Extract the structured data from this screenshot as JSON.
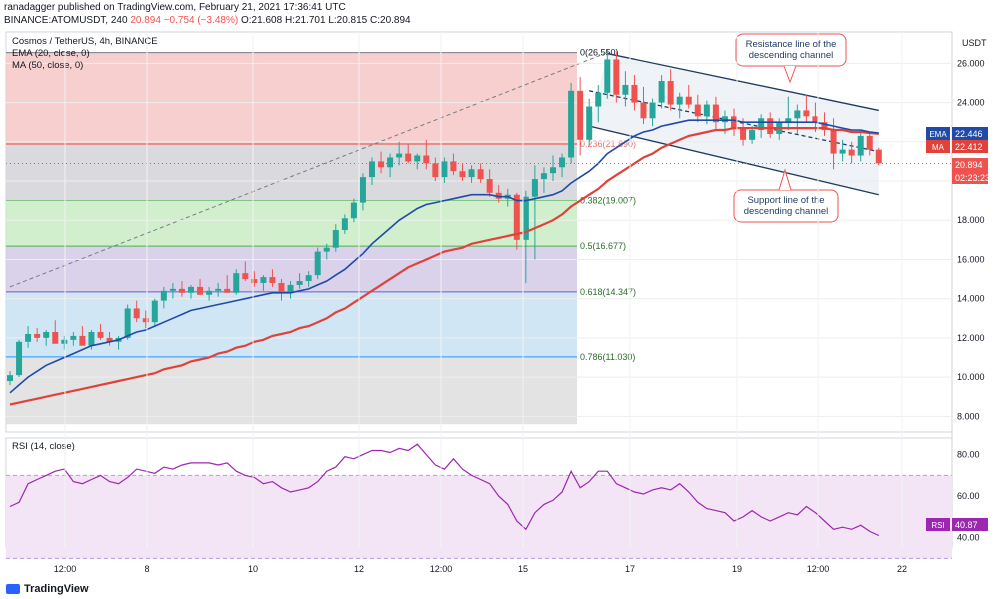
{
  "header": {
    "published": "ranadagger published on TradingView.com, February 21, 2021 17:36:41 UTC",
    "symbol": "BINANCE:ATOMUSDT, 240",
    "close_change": "20.894  −0.754 (−3.48%)",
    "o": "O:21.608",
    "h": "H:21.701",
    "l": "L:20.815",
    "c": "C:20.894"
  },
  "legend": {
    "title": "Cosmos / TetherUS, 4h, BINANCE",
    "ema": "EMA (20, close, 0)",
    "ma": "MA (50, close, 0)"
  },
  "currency": "USDT",
  "annotations": {
    "resistance": [
      "Resistance line of the",
      "descending channel"
    ],
    "support": [
      "Support line of the",
      "descending channel"
    ]
  },
  "badges": {
    "ema_label": "EMA",
    "ema_value": "22.446",
    "ma_label": "MA",
    "ma_value": "22.412",
    "price": "20.894",
    "countdown": "02:23:23",
    "rsi_label": "RSI",
    "rsi_value": "40.87"
  },
  "rsi_legend": "RSI (14, close)",
  "footer_brand": "TradingView",
  "colors": {
    "up": "#26a69a",
    "down": "#ef5350",
    "ema": "#1f4aa8",
    "ma": "#e0423a",
    "rsi": "#9c27b0",
    "channel": "#1e3a5f"
  },
  "chart_data": {
    "type": "candlestick",
    "title": "Cosmos / TetherUS, 4h, BINANCE",
    "ylim": [
      7.2,
      27.6
    ],
    "y_ticks": [
      "26.000",
      "24.000",
      "22.000",
      "20.000",
      "18.000",
      "16.000",
      "14.000",
      "12.000",
      "10.000",
      "8.000"
    ],
    "x_ticks": [
      "12:00",
      "8",
      "10",
      "12",
      "12:00",
      "15",
      "17",
      "19",
      "12:00",
      "22"
    ],
    "candles_ohlc": [
      [
        9.8,
        10.3,
        9.6,
        10.1
      ],
      [
        10.1,
        11.9,
        10.0,
        11.8
      ],
      [
        11.8,
        12.6,
        11.5,
        12.2
      ],
      [
        12.2,
        12.5,
        11.8,
        12.0
      ],
      [
        12.0,
        12.4,
        11.6,
        12.3
      ],
      [
        12.3,
        12.9,
        11.9,
        11.7
      ],
      [
        11.7,
        12.1,
        11.4,
        11.9
      ],
      [
        11.9,
        12.3,
        11.6,
        12.1
      ],
      [
        12.1,
        12.6,
        11.8,
        11.6
      ],
      [
        11.6,
        12.4,
        11.4,
        12.3
      ],
      [
        12.3,
        12.7,
        11.9,
        12.0
      ],
      [
        12.0,
        12.3,
        11.6,
        11.8
      ],
      [
        11.8,
        12.1,
        11.4,
        12.0
      ],
      [
        12.0,
        13.7,
        11.9,
        13.5
      ],
      [
        13.5,
        13.9,
        12.8,
        13.0
      ],
      [
        13.0,
        13.4,
        12.5,
        12.8
      ],
      [
        12.8,
        14.0,
        12.6,
        13.9
      ],
      [
        13.9,
        14.6,
        13.5,
        14.4
      ],
      [
        14.4,
        14.8,
        14.0,
        14.5
      ],
      [
        14.5,
        14.9,
        14.1,
        14.3
      ],
      [
        14.3,
        14.7,
        14.0,
        14.6
      ],
      [
        14.6,
        15.0,
        14.2,
        14.2
      ],
      [
        14.2,
        14.6,
        13.9,
        14.4
      ],
      [
        14.4,
        14.8,
        14.1,
        14.5
      ],
      [
        14.5,
        15.2,
        14.3,
        14.3
      ],
      [
        14.3,
        15.5,
        14.2,
        15.3
      ],
      [
        15.3,
        15.9,
        14.9,
        15.0
      ],
      [
        15.0,
        15.4,
        14.6,
        14.8
      ],
      [
        14.8,
        15.2,
        14.4,
        15.1
      ],
      [
        15.1,
        15.5,
        14.6,
        14.8
      ],
      [
        14.8,
        15.0,
        13.9,
        14.3
      ],
      [
        14.3,
        14.9,
        14.0,
        14.7
      ],
      [
        14.7,
        15.3,
        14.5,
        14.9
      ],
      [
        14.9,
        15.4,
        14.6,
        15.2
      ],
      [
        15.2,
        16.6,
        15.0,
        16.4
      ],
      [
        16.4,
        16.8,
        16.0,
        16.6
      ],
      [
        16.6,
        17.8,
        16.4,
        17.5
      ],
      [
        17.5,
        18.3,
        17.3,
        18.1
      ],
      [
        18.1,
        19.1,
        17.9,
        18.9
      ],
      [
        18.9,
        20.4,
        18.5,
        20.2
      ],
      [
        20.2,
        21.2,
        19.8,
        21.0
      ],
      [
        21.0,
        21.5,
        20.4,
        20.7
      ],
      [
        20.7,
        21.4,
        20.2,
        21.2
      ],
      [
        21.2,
        22.0,
        20.8,
        21.4
      ],
      [
        21.4,
        21.9,
        20.9,
        21.0
      ],
      [
        21.0,
        21.4,
        20.6,
        21.3
      ],
      [
        21.3,
        22.1,
        20.6,
        20.9
      ],
      [
        20.9,
        21.2,
        20.0,
        20.2
      ],
      [
        20.2,
        21.2,
        19.9,
        21.0
      ],
      [
        21.0,
        21.4,
        20.3,
        20.5
      ],
      [
        20.5,
        20.9,
        20.0,
        20.2
      ],
      [
        20.2,
        20.8,
        19.9,
        20.6
      ],
      [
        20.6,
        20.9,
        19.9,
        20.1
      ],
      [
        20.1,
        20.6,
        19.2,
        19.4
      ],
      [
        19.4,
        19.8,
        18.9,
        19.1
      ],
      [
        19.1,
        19.6,
        18.7,
        19.3
      ],
      [
        19.3,
        19.4,
        16.5,
        17.0
      ],
      [
        17.0,
        19.5,
        14.8,
        19.2
      ],
      [
        19.2,
        20.8,
        16.0,
        20.1
      ],
      [
        20.1,
        20.7,
        19.4,
        20.4
      ],
      [
        20.4,
        21.3,
        20.0,
        20.7
      ],
      [
        20.7,
        21.4,
        20.2,
        21.2
      ],
      [
        21.2,
        25.0,
        20.9,
        24.6
      ],
      [
        24.6,
        25.3,
        21.3,
        22.1
      ],
      [
        22.1,
        24.2,
        21.8,
        23.8
      ],
      [
        23.8,
        24.9,
        23.0,
        24.5
      ],
      [
        24.5,
        26.7,
        24.2,
        26.2
      ],
      [
        26.2,
        26.6,
        24.0,
        24.4
      ],
      [
        24.4,
        25.6,
        23.8,
        24.9
      ],
      [
        24.9,
        25.4,
        23.6,
        24.0
      ],
      [
        24.0,
        24.8,
        22.9,
        23.2
      ],
      [
        23.2,
        24.2,
        22.8,
        24.0
      ],
      [
        24.0,
        25.4,
        23.7,
        25.1
      ],
      [
        25.1,
        25.7,
        23.6,
        23.9
      ],
      [
        23.9,
        24.5,
        23.2,
        24.3
      ],
      [
        24.3,
        24.9,
        23.7,
        23.9
      ],
      [
        23.9,
        24.4,
        23.0,
        23.3
      ],
      [
        23.3,
        24.1,
        22.9,
        23.9
      ],
      [
        23.9,
        24.3,
        22.6,
        23.0
      ],
      [
        23.0,
        23.6,
        22.4,
        23.3
      ],
      [
        23.3,
        23.7,
        22.3,
        22.7
      ],
      [
        22.7,
        23.2,
        21.8,
        22.1
      ],
      [
        22.1,
        22.8,
        21.9,
        22.6
      ],
      [
        22.6,
        23.4,
        22.2,
        23.2
      ],
      [
        23.2,
        23.5,
        22.2,
        22.4
      ],
      [
        22.4,
        23.2,
        22.1,
        23.0
      ],
      [
        23.0,
        24.3,
        22.6,
        23.2
      ],
      [
        23.2,
        23.9,
        22.4,
        23.6
      ],
      [
        23.6,
        24.4,
        23.0,
        23.3
      ],
      [
        23.3,
        24.0,
        22.5,
        23.0
      ],
      [
        23.0,
        23.5,
        22.3,
        22.6
      ],
      [
        22.6,
        23.2,
        20.6,
        21.4
      ],
      [
        21.4,
        22.1,
        21.0,
        21.6
      ],
      [
        21.6,
        22.0,
        20.9,
        21.3
      ],
      [
        21.3,
        22.6,
        21.0,
        22.3
      ],
      [
        22.3,
        22.5,
        21.3,
        21.6
      ],
      [
        21.6,
        21.7,
        20.8,
        20.9
      ]
    ],
    "ema_20": [
      9.2,
      9.6,
      10.0,
      10.3,
      10.6,
      10.8,
      11.0,
      11.2,
      11.4,
      11.6,
      11.7,
      11.8,
      11.9,
      12.1,
      12.3,
      12.4,
      12.6,
      12.8,
      13.0,
      13.2,
      13.4,
      13.5,
      13.6,
      13.7,
      13.8,
      13.9,
      14.0,
      14.1,
      14.2,
      14.3,
      14.3,
      14.3,
      14.4,
      14.5,
      14.7,
      14.9,
      15.2,
      15.5,
      15.9,
      16.3,
      16.8,
      17.2,
      17.6,
      18.0,
      18.3,
      18.6,
      18.8,
      18.9,
      19.0,
      19.1,
      19.2,
      19.3,
      19.3,
      19.3,
      19.2,
      19.2,
      19.0,
      19.0,
      19.1,
      19.2,
      19.3,
      19.5,
      19.9,
      20.2,
      20.5,
      20.9,
      21.4,
      21.7,
      22.0,
      22.3,
      22.5,
      22.6,
      22.8,
      22.9,
      23.0,
      23.1,
      23.1,
      23.1,
      23.1,
      23.1,
      23.1,
      23.0,
      23.0,
      23.0,
      23.0,
      23.0,
      23.0,
      23.0,
      23.0,
      23.0,
      22.9,
      22.8,
      22.7,
      22.6,
      22.6,
      22.5,
      22.45
    ],
    "ma_50": [
      8.6,
      8.7,
      8.8,
      8.9,
      9.0,
      9.1,
      9.2,
      9.3,
      9.4,
      9.5,
      9.6,
      9.7,
      9.8,
      9.9,
      10.0,
      10.1,
      10.2,
      10.4,
      10.5,
      10.6,
      10.8,
      10.9,
      11.0,
      11.2,
      11.3,
      11.5,
      11.6,
      11.8,
      11.9,
      12.1,
      12.2,
      12.3,
      12.5,
      12.6,
      12.8,
      13.0,
      13.3,
      13.5,
      13.8,
      14.1,
      14.4,
      14.7,
      15.0,
      15.3,
      15.6,
      15.8,
      16.0,
      16.2,
      16.4,
      16.5,
      16.6,
      16.8,
      16.9,
      17.0,
      17.1,
      17.2,
      17.3,
      17.4,
      17.6,
      17.8,
      18.0,
      18.3,
      18.7,
      19.0,
      19.3,
      19.6,
      20.0,
      20.3,
      20.6,
      20.9,
      21.2,
      21.4,
      21.7,
      21.9,
      22.1,
      22.3,
      22.4,
      22.5,
      22.6,
      22.6,
      22.7,
      22.7,
      22.7,
      22.7,
      22.7,
      22.7,
      22.7,
      22.7,
      22.7,
      22.7,
      22.7,
      22.6,
      22.6,
      22.5,
      22.5,
      22.45,
      22.41
    ],
    "fibonacci": [
      {
        "ratio": "0(26.550)",
        "value": 26.55
      },
      {
        "ratio": "0.236(21.890)",
        "value": 21.89
      },
      {
        "ratio": "0.382(19.007)",
        "value": 19.007
      },
      {
        "ratio": "0.5(16.677)",
        "value": 16.677
      },
      {
        "ratio": "0.618(14.347)",
        "value": 14.347
      },
      {
        "ratio": "0.786(11.030)",
        "value": 11.03
      }
    ],
    "fib_bottom": 7.6,
    "channel": {
      "resistance": [
        [
          66,
          26.5
        ],
        [
          96,
          23.6
        ]
      ],
      "support": [
        [
          64,
          22.8
        ],
        [
          96,
          19.3
        ]
      ],
      "midline": [
        [
          64,
          24.6
        ],
        [
          96,
          21.5
        ]
      ]
    },
    "rsi": {
      "ylim": [
        35,
        88
      ],
      "ticks": [
        "80.00",
        "60.00",
        "40.00"
      ],
      "overbought": 70,
      "oversold": 30,
      "values": [
        55,
        57,
        66,
        68,
        70,
        72,
        73,
        67,
        66,
        68,
        70,
        67,
        66,
        69,
        73,
        72,
        71,
        74,
        73,
        75,
        76,
        76,
        76,
        75,
        76,
        72,
        70,
        69,
        66,
        67,
        64,
        62,
        63,
        64,
        67,
        72,
        74,
        79,
        78,
        80,
        82,
        82,
        81,
        83,
        82,
        85,
        80,
        75,
        73,
        78,
        73,
        70,
        68,
        66,
        60,
        56,
        48,
        44,
        52,
        56,
        58,
        62,
        72,
        64,
        67,
        72,
        72,
        66,
        64,
        62,
        61,
        63,
        64,
        63,
        66,
        62,
        57,
        54,
        53,
        52,
        48,
        50,
        53,
        50,
        48,
        50,
        52,
        51,
        55,
        52,
        48,
        44,
        45,
        44,
        46,
        43,
        41
      ]
    }
  }
}
